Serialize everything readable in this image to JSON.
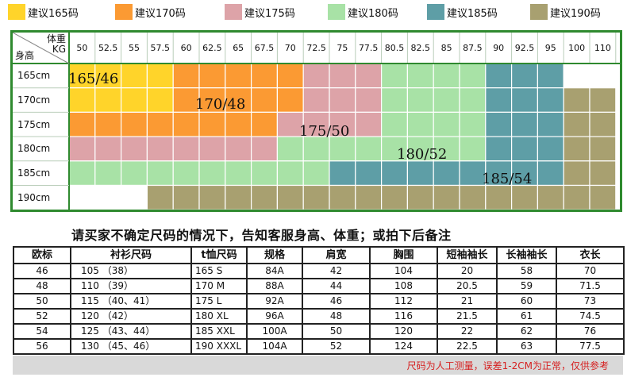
{
  "legend": [
    {
      "label": "建议165码",
      "color": "#ffd42a"
    },
    {
      "label": "建议170码",
      "color": "#fb9a33"
    },
    {
      "label": "建议175码",
      "color": "#dda3a8"
    },
    {
      "label": "建议180码",
      "color": "#a8e2a6"
    },
    {
      "label": "建议185码",
      "color": "#5e9ea6"
    },
    {
      "label": "建议190码",
      "color": "#a8a070"
    }
  ],
  "matrix": {
    "corner_weight": "体重",
    "corner_unit": "KG",
    "corner_height": "身高",
    "weights": [
      "50",
      "52.5",
      "55",
      "57.5",
      "60",
      "62.5",
      "65",
      "67.5",
      "70",
      "72.5",
      "75",
      "77.5",
      "80.5",
      "82.5",
      "85",
      "87.5",
      "90",
      "92.5",
      "95",
      "100",
      "110"
    ],
    "heights": [
      "165cm",
      "170cm",
      "175cm",
      "180cm",
      "185cm",
      "190cm"
    ],
    "cell_size_index": [
      [
        0,
        0,
        0,
        0,
        1,
        1,
        1,
        1,
        1,
        2,
        2,
        2,
        3,
        3,
        3,
        3,
        4,
        4,
        4,
        -1,
        -1
      ],
      [
        0,
        0,
        0,
        0,
        1,
        1,
        1,
        1,
        1,
        2,
        2,
        2,
        3,
        3,
        3,
        3,
        4,
        4,
        4,
        5,
        5
      ],
      [
        1,
        1,
        1,
        1,
        1,
        1,
        1,
        1,
        2,
        2,
        2,
        2,
        3,
        3,
        3,
        3,
        4,
        4,
        4,
        5,
        5
      ],
      [
        2,
        2,
        2,
        2,
        2,
        2,
        2,
        2,
        3,
        3,
        3,
        3,
        3,
        3,
        3,
        3,
        4,
        4,
        4,
        5,
        5
      ],
      [
        3,
        3,
        3,
        3,
        3,
        3,
        3,
        3,
        3,
        3,
        4,
        4,
        4,
        4,
        4,
        4,
        4,
        4,
        4,
        5,
        5
      ],
      [
        -1,
        -1,
        -1,
        5,
        5,
        5,
        5,
        5,
        5,
        5,
        5,
        5,
        5,
        5,
        5,
        5,
        5,
        5,
        5,
        5,
        5
      ]
    ],
    "size_tags": [
      "165/46",
      "170/48",
      "175/50",
      "180/52",
      "185/54"
    ]
  },
  "instruction": "请买家不确定尺码的情况下，告知客服身高、体重；或拍下后备注",
  "table": {
    "headers": [
      "欧标",
      "衬衫尺码",
      "t恤尺码",
      "规格",
      "肩宽",
      "胸围",
      "短袖袖长",
      "长袖袖长",
      "衣长"
    ],
    "rows": [
      [
        "46",
        "105 （38）",
        "165 S",
        "84A",
        "42",
        "104",
        "20",
        "58",
        "70"
      ],
      [
        "48",
        "110 （39）",
        "170 M",
        "88A",
        "44",
        "108",
        "20.5",
        "59",
        "71.5"
      ],
      [
        "50",
        "115 （40、41）",
        "175 L",
        "92A",
        "46",
        "112",
        "21",
        "60",
        "73"
      ],
      [
        "52",
        "120 （42）",
        "180 XL",
        "96A",
        "48",
        "116",
        "21.5",
        "61",
        "74.5"
      ],
      [
        "54",
        "125 （43、44）",
        "185 XXL",
        "100A",
        "50",
        "120",
        "22",
        "62",
        "76"
      ],
      [
        "56",
        "130 （45、46）",
        "190 XXXL",
        "104A",
        "52",
        "124",
        "22.5",
        "63",
        "77.5"
      ]
    ]
  },
  "note": "尺码为人工测量，误差1-2CM为正常，仅供参考"
}
